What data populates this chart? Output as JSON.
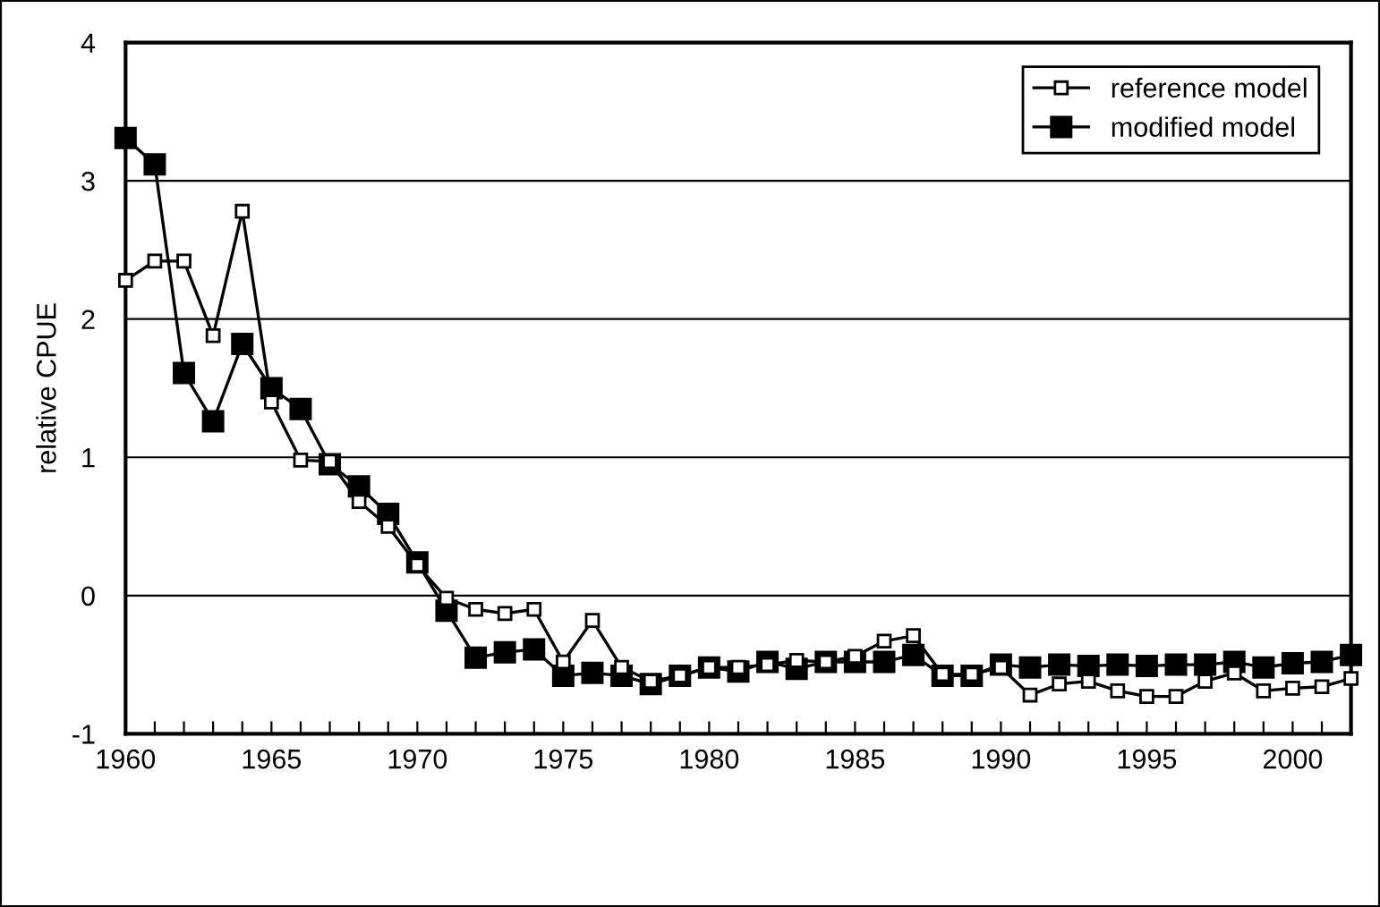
{
  "chart_data": {
    "type": "line",
    "ylabel": "relative CPUE",
    "x": [
      1960,
      1961,
      1962,
      1963,
      1964,
      1965,
      1966,
      1967,
      1968,
      1969,
      1970,
      1971,
      1972,
      1973,
      1974,
      1975,
      1976,
      1977,
      1978,
      1979,
      1980,
      1981,
      1982,
      1983,
      1984,
      1985,
      1986,
      1987,
      1988,
      1989,
      1990,
      1991,
      1992,
      1993,
      1994,
      1995,
      1996,
      1997,
      1998,
      1999,
      2000,
      2001,
      2002
    ],
    "series": [
      {
        "name": "reference model",
        "color": "#000000",
        "marker": "square",
        "values": [
          2.28,
          2.42,
          2.42,
          1.88,
          2.78,
          1.4,
          0.98,
          0.97,
          0.68,
          0.5,
          0.22,
          -0.02,
          -0.1,
          -0.13,
          -0.1,
          -0.48,
          -0.18,
          -0.52,
          -0.62,
          -0.58,
          -0.52,
          -0.52,
          -0.5,
          -0.47,
          -0.48,
          -0.44,
          -0.33,
          -0.29,
          -0.57,
          -0.57,
          -0.52,
          -0.72,
          -0.64,
          -0.62,
          -0.69,
          -0.73,
          -0.73,
          -0.62,
          -0.56,
          -0.69,
          -0.67,
          -0.66,
          -0.6
        ]
      },
      {
        "name": "modified model",
        "color": "#000000",
        "marker": "square",
        "values": [
          3.31,
          3.12,
          1.61,
          1.26,
          1.82,
          1.5,
          1.35,
          0.95,
          0.79,
          0.59,
          0.24,
          -0.11,
          -0.45,
          -0.41,
          -0.39,
          -0.58,
          -0.56,
          -0.58,
          -0.64,
          -0.58,
          -0.52,
          -0.55,
          -0.48,
          -0.53,
          -0.48,
          -0.48,
          -0.48,
          -0.43,
          -0.58,
          -0.58,
          -0.5,
          -0.52,
          -0.5,
          -0.51,
          -0.5,
          -0.51,
          -0.5,
          -0.5,
          -0.48,
          -0.52,
          -0.49,
          -0.48,
          -0.43
        ]
      }
    ],
    "xlim": [
      1960,
      2002
    ],
    "xticks": [
      1960,
      {
        "value": 1961,
        "label": null
      },
      {
        "value": 1962,
        "label": null
      },
      {
        "value": 1963,
        "label": null
      },
      {
        "value": 1964,
        "label": null
      },
      1965,
      {
        "value": 1966,
        "label": null
      },
      {
        "value": 1967,
        "label": null
      },
      {
        "value": 1968,
        "label": null
      },
      {
        "value": 1969,
        "label": null
      },
      1970,
      {
        "value": 1971,
        "label": null
      },
      {
        "value": 1972,
        "label": null
      },
      {
        "value": 1973,
        "label": null
      },
      {
        "value": 1974,
        "label": null
      },
      1975,
      {
        "value": 1976,
        "label": null
      },
      {
        "value": 1977,
        "label": null
      },
      {
        "value": 1978,
        "label": null
      },
      {
        "value": 1979,
        "label": null
      },
      1980,
      {
        "value": 1981,
        "label": null
      },
      {
        "value": 1982,
        "label": null
      },
      {
        "value": 1983,
        "label": null
      },
      {
        "value": 1984,
        "label": null
      },
      1985,
      {
        "value": 1986,
        "label": null
      },
      {
        "value": 1987,
        "label": null
      },
      {
        "value": 1988,
        "label": null
      },
      {
        "value": 1989,
        "label": null
      },
      1990,
      {
        "value": 1991,
        "label": null
      },
      {
        "value": 1992,
        "label": null
      },
      {
        "value": 1993,
        "label": null
      },
      {
        "value": 1994,
        "label": null
      },
      1995,
      {
        "value": 1996,
        "label": null
      },
      {
        "value": 1997,
        "label": null
      },
      {
        "value": 1998,
        "label": null
      },
      {
        "value": 1999,
        "label": null
      },
      2000,
      {
        "value": 2001,
        "label": null
      },
      {
        "value": 2002,
        "label": null
      }
    ],
    "ylim": [
      -1,
      4
    ],
    "yticks": [
      -1,
      0,
      1,
      2,
      3,
      4
    ],
    "grid": "y",
    "legend": "top right",
    "line_style": "solid"
  }
}
